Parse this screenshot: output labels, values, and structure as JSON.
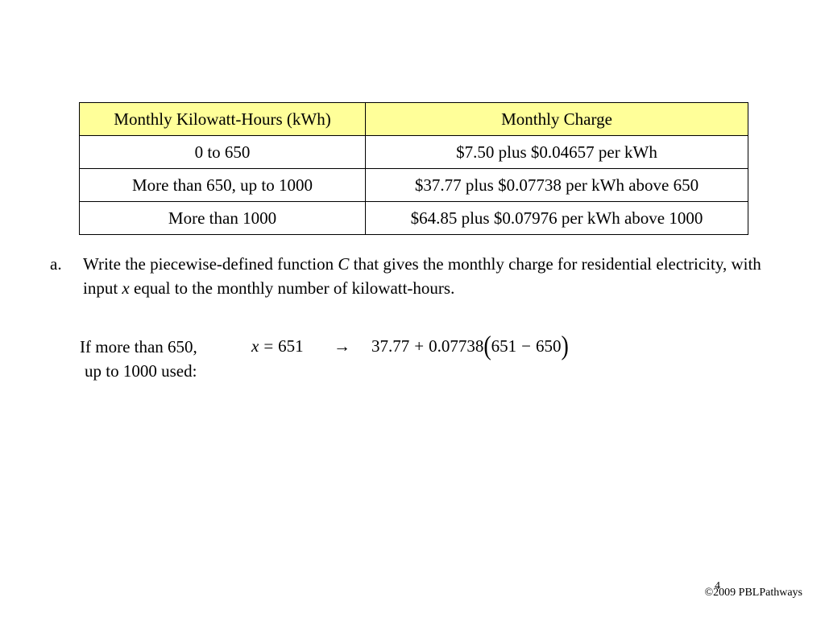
{
  "table": {
    "headers": [
      "Monthly Kilowatt-Hours (kWh)",
      "Monthly Charge"
    ],
    "rows": [
      [
        "0 to 650",
        "$7.50 plus $0.04657 per kWh"
      ],
      [
        "More than 650, up to 1000",
        "$37.77 plus $0.07738 per kWh above 650"
      ],
      [
        "More than 1000",
        "$64.85 plus $0.07976 per kWh above 1000"
      ]
    ],
    "header_bg": "#ffff99"
  },
  "question": {
    "letter": "a.",
    "text_1": "Write the piecewise-defined function ",
    "var_c": "C",
    "text_2": " that gives the monthly charge for residential electricity, with input ",
    "var_x": "x",
    "text_3": " equal to the monthly number of kilowatt-hours."
  },
  "work": {
    "condition_line1": "If more than 650,",
    "condition_line2": "up to 1000 used:",
    "assign_var": "x",
    "assign_op": "=",
    "assign_value": "651",
    "arrow": "→",
    "expr_base": "37.77",
    "expr_plus": "+",
    "expr_rate": "0.07738",
    "paren_open": "(",
    "expr_a": "651",
    "expr_minus": "−",
    "expr_b": "650",
    "paren_close": ")"
  },
  "footer": {
    "copyright": "©2009 PBLPathways",
    "page_number": "4"
  }
}
